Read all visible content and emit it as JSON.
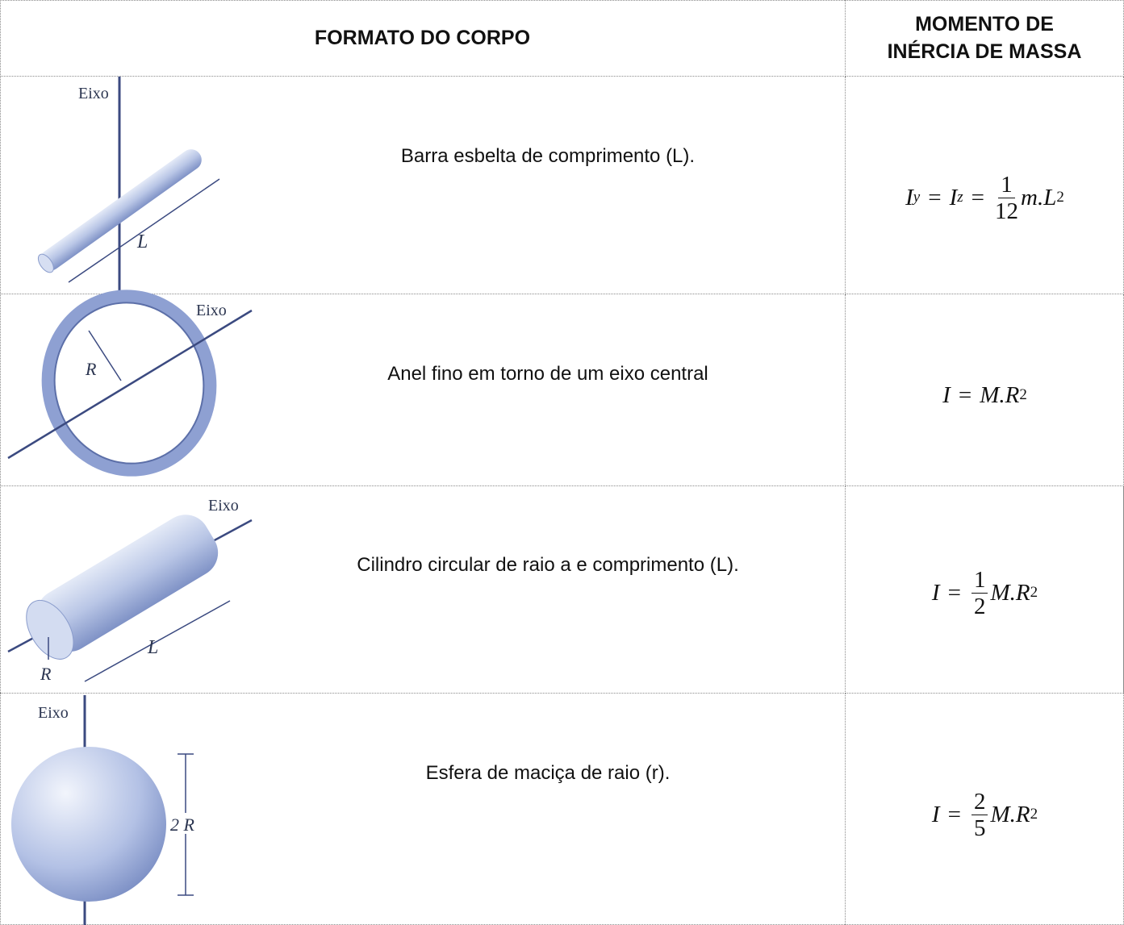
{
  "header": {
    "shape": "FORMATO DO CORPO",
    "inertia": [
      "MOMENTO DE",
      "INÉRCIA DE MASSA"
    ]
  },
  "rows": [
    {
      "figure": {
        "axis": "Eixo",
        "length": "L"
      },
      "description": "Barra esbelta de comprimento (L).",
      "formula": {
        "a": "I",
        "a_sub": "y",
        "eq1": "=",
        "b": "I",
        "b_sub": "z",
        "eq2": "=",
        "num": "1",
        "den": "12",
        "var": "m.L",
        "exp": "2"
      }
    },
    {
      "figure": {
        "axis": "Eixo",
        "radius": "R"
      },
      "description": "Anel fino em torno de um eixo central",
      "formula": {
        "a": "I",
        "eq1": "=",
        "var": "M.R",
        "exp": "2"
      }
    },
    {
      "figure": {
        "axis": "Eixo",
        "length": "L",
        "radius": "R"
      },
      "description": "Cilindro circular de raio a e comprimento (L).",
      "formula": {
        "a": "I",
        "eq1": "=",
        "num": "1",
        "den": "2",
        "var": "M.R",
        "exp": "2"
      }
    },
    {
      "figure": {
        "axis": "Eixo",
        "diameter": "2 R"
      },
      "description": "Esfera de maciça de raio (r).",
      "formula": {
        "a": "I",
        "eq1": "=",
        "num": "2",
        "den": "5",
        "var": "M.R",
        "exp": "2"
      }
    }
  ]
}
